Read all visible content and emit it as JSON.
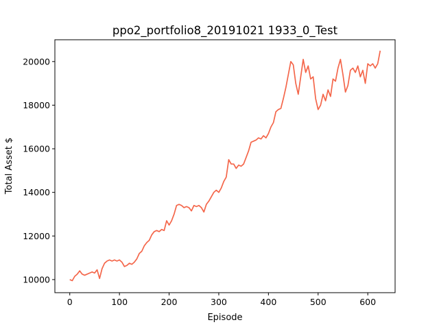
{
  "chart_data": {
    "type": "line",
    "title": "ppo2_portfolio8_20191021 1933_0_Test",
    "xlabel": "Episode",
    "ylabel": "Total Asset $",
    "xlim": [
      -30,
      655
    ],
    "ylim": [
      9400,
      21000
    ],
    "xticks": [
      0,
      100,
      200,
      300,
      400,
      500,
      600
    ],
    "yticks": [
      10000,
      12000,
      14000,
      16000,
      18000,
      20000
    ],
    "xtick_labels": [
      "0",
      "100",
      "200",
      "300",
      "400",
      "500",
      "600"
    ],
    "ytick_labels": [
      "10000",
      "12000",
      "14000",
      "16000",
      "18000",
      "20000"
    ],
    "grid": false,
    "legend": "none",
    "series": [
      {
        "color": "#f4664a",
        "x": [
          0,
          5,
          10,
          15,
          20,
          25,
          30,
          35,
          40,
          45,
          50,
          55,
          60,
          65,
          70,
          75,
          80,
          85,
          90,
          95,
          100,
          105,
          110,
          115,
          120,
          125,
          130,
          135,
          140,
          145,
          150,
          155,
          160,
          165,
          170,
          175,
          180,
          185,
          190,
          195,
          200,
          205,
          210,
          215,
          220,
          225,
          230,
          235,
          240,
          245,
          250,
          255,
          260,
          265,
          270,
          275,
          280,
          285,
          290,
          295,
          300,
          305,
          310,
          315,
          320,
          325,
          330,
          335,
          340,
          345,
          350,
          355,
          360,
          365,
          370,
          375,
          380,
          385,
          390,
          395,
          400,
          405,
          410,
          415,
          420,
          425,
          430,
          435,
          440,
          445,
          450,
          455,
          460,
          465,
          470,
          475,
          480,
          485,
          490,
          495,
          500,
          505,
          510,
          515,
          520,
          525,
          530,
          535,
          540,
          545,
          550,
          555,
          560,
          565,
          570,
          575,
          580,
          585,
          590,
          595,
          600,
          605,
          610,
          615,
          620,
          625
        ],
        "y": [
          10000,
          9950,
          10150,
          10250,
          10400,
          10250,
          10200,
          10250,
          10300,
          10350,
          10300,
          10450,
          10050,
          10500,
          10750,
          10850,
          10900,
          10850,
          10900,
          10850,
          10900,
          10800,
          10600,
          10650,
          10750,
          10700,
          10800,
          10950,
          11200,
          11300,
          11550,
          11700,
          11800,
          12050,
          12200,
          12250,
          12200,
          12300,
          12250,
          12700,
          12500,
          12700,
          13000,
          13400,
          13450,
          13400,
          13300,
          13350,
          13300,
          13150,
          13400,
          13350,
          13400,
          13300,
          13100,
          13450,
          13600,
          13800,
          14000,
          14100,
          14000,
          14200,
          14500,
          14700,
          15500,
          15300,
          15300,
          15100,
          15250,
          15200,
          15300,
          15600,
          15900,
          16300,
          16350,
          16400,
          16500,
          16450,
          16600,
          16500,
          16700,
          17000,
          17200,
          17700,
          17800,
          17850,
          18300,
          18800,
          19400,
          20000,
          19850,
          19000,
          18500,
          19300,
          20100,
          19500,
          19800,
          19200,
          19300,
          18300,
          17800,
          18000,
          18500,
          18200,
          18700,
          18400,
          19200,
          19100,
          19700,
          20100,
          19400,
          18600,
          18900,
          19600,
          19700,
          19500,
          19800,
          19300,
          19600,
          19000,
          19900,
          19800,
          19900,
          19700,
          19900,
          20500
        ]
      }
    ]
  }
}
